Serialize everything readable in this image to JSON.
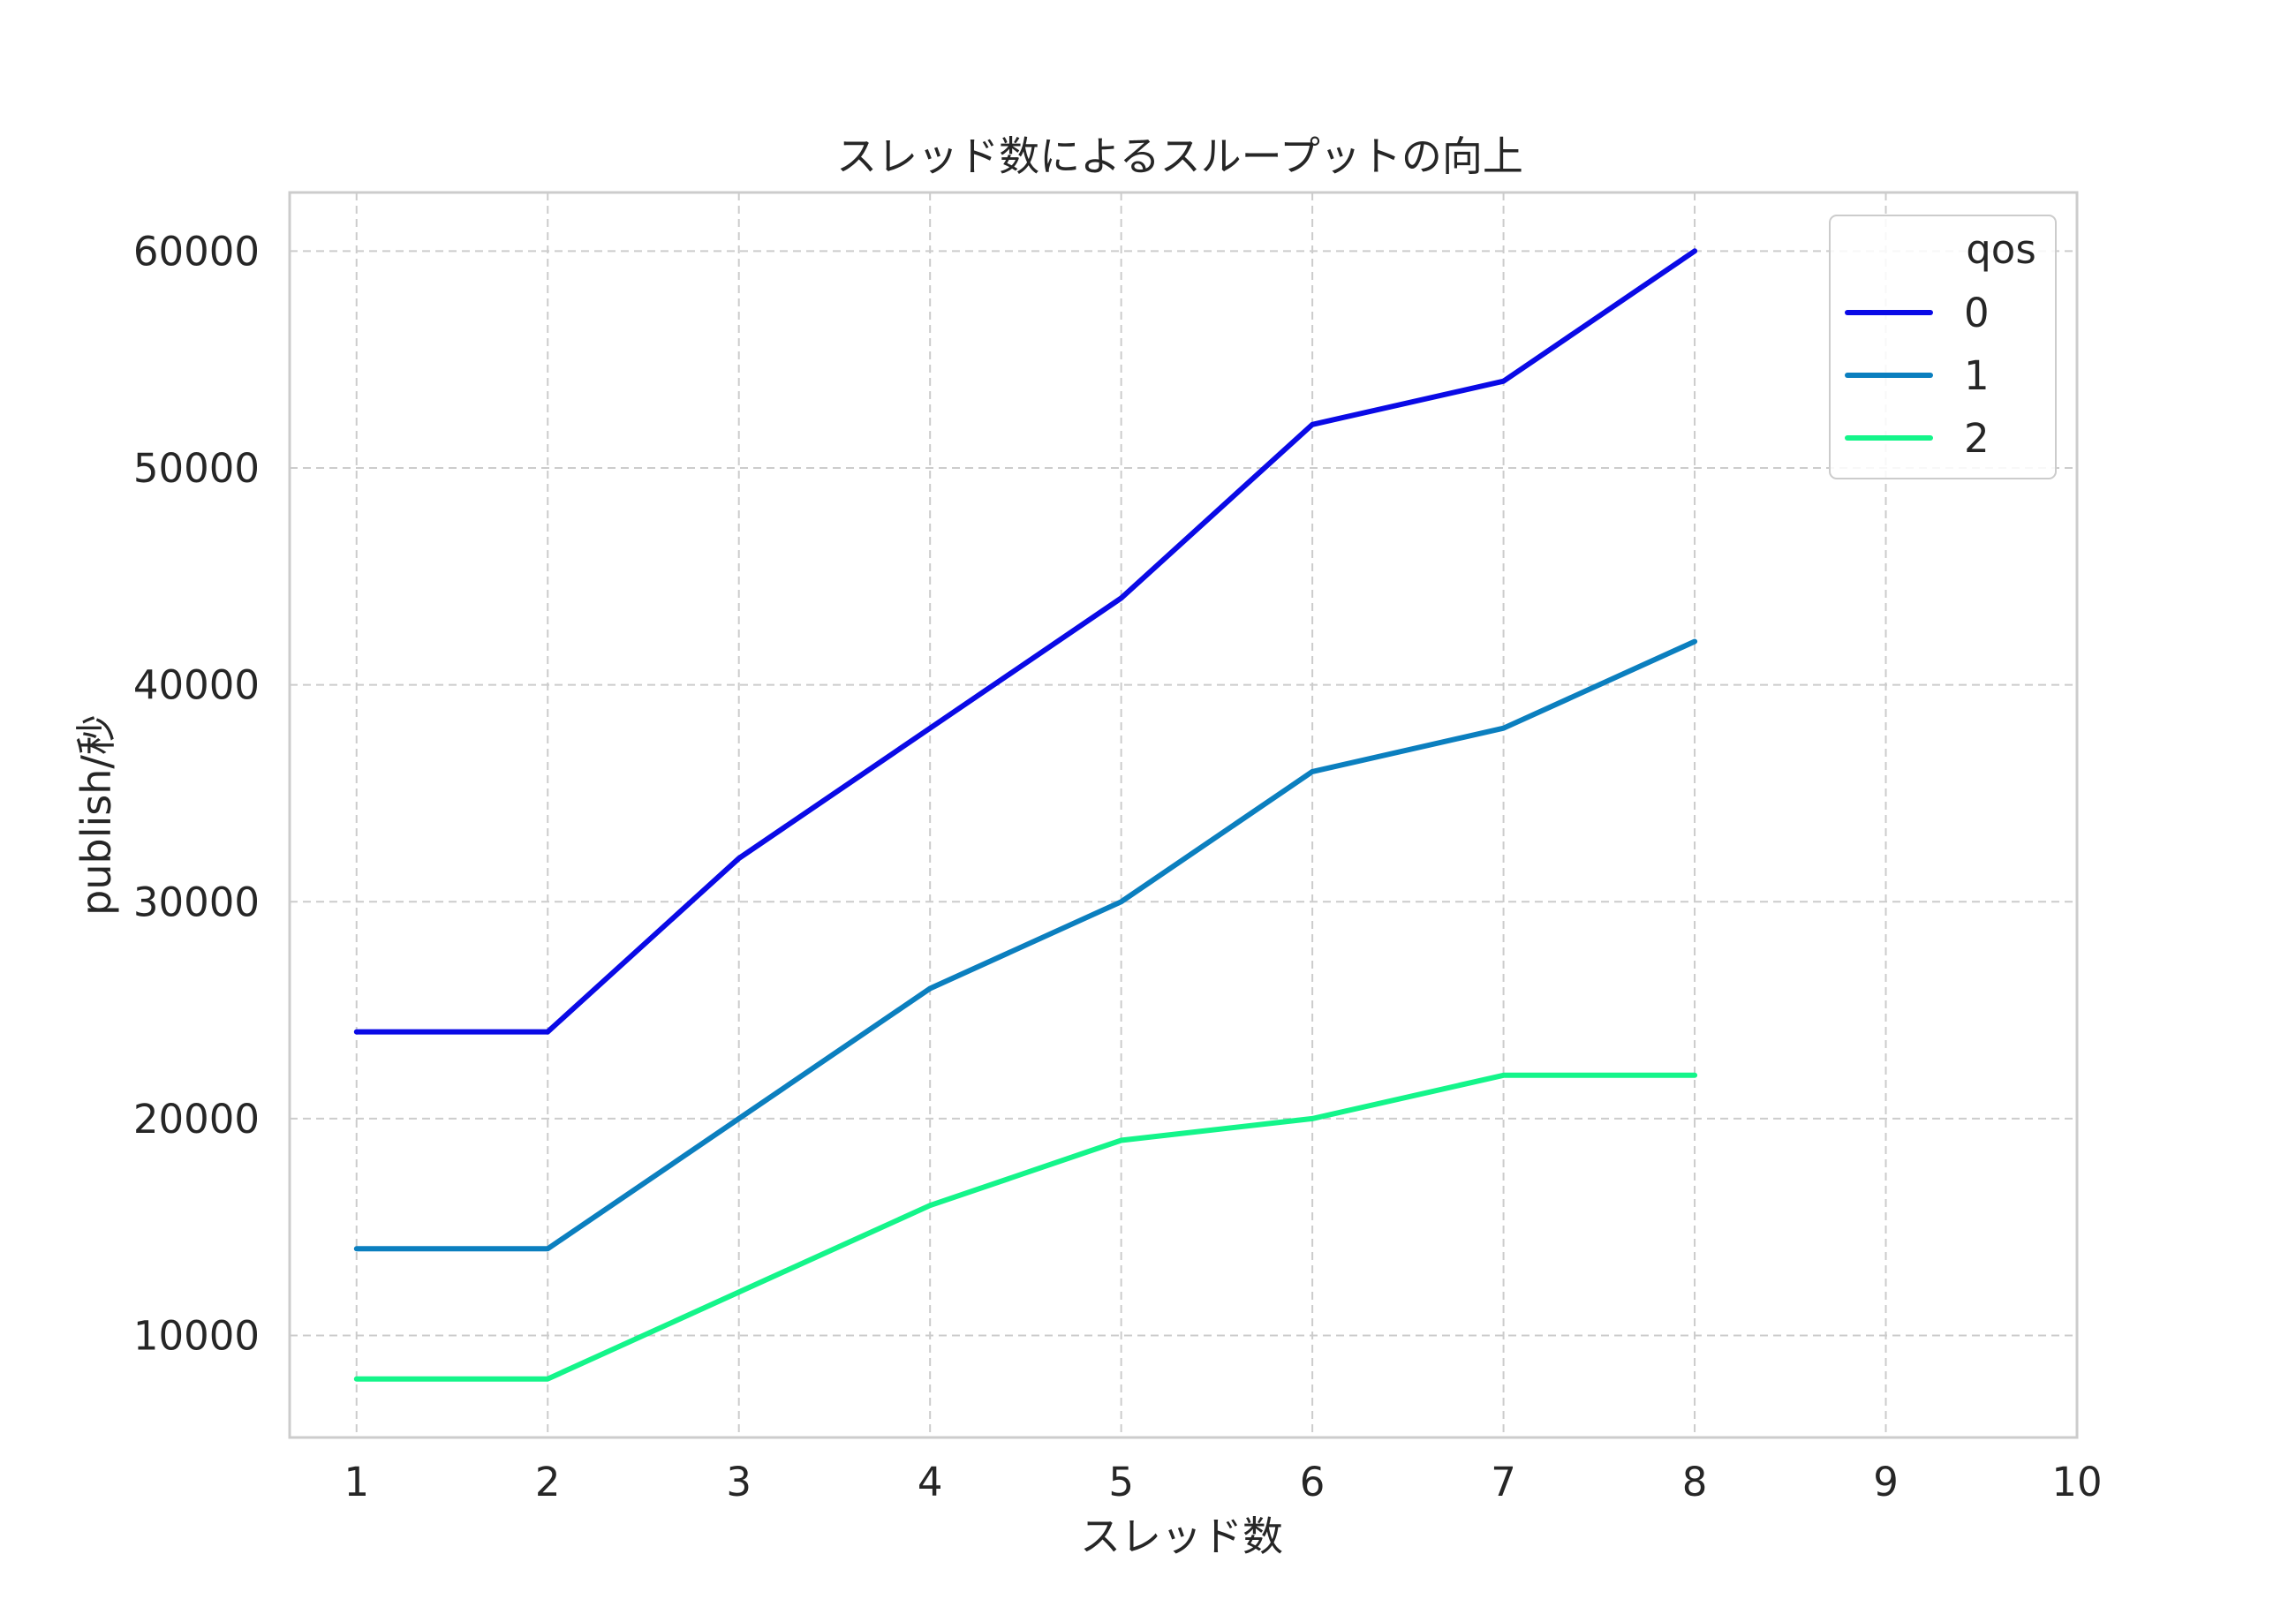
{
  "chart_data": {
    "type": "line",
    "title": "スレッド数によるスループットの向上",
    "xlabel": "スレッド数",
    "ylabel": "publish/秒",
    "x_ticks": [
      "1",
      "2",
      "3",
      "4",
      "5",
      "6",
      "7",
      "8",
      "9",
      "10"
    ],
    "y_ticks": [
      "10000",
      "20000",
      "30000",
      "40000",
      "50000",
      "60000"
    ],
    "xlim": [
      0.65,
      10
    ],
    "ylim": [
      5300,
      62700
    ],
    "grid": true,
    "legend": {
      "title": "qos",
      "position": "top-right"
    },
    "x": [
      1,
      2,
      3,
      4,
      5,
      6,
      7,
      8
    ],
    "series": [
      {
        "name": "0",
        "color": "#0a0ae6",
        "values": [
          24000,
          24000,
          32000,
          38000,
          44000,
          52000,
          54000,
          60000
        ]
      },
      {
        "name": "1",
        "color": "#0b7fbf",
        "values": [
          14000,
          14000,
          20000,
          26000,
          30000,
          36000,
          38000,
          42000
        ]
      },
      {
        "name": "2",
        "color": "#14f58a",
        "values": [
          8000,
          8000,
          12000,
          16000,
          19000,
          20000,
          22000,
          22000
        ]
      }
    ]
  }
}
